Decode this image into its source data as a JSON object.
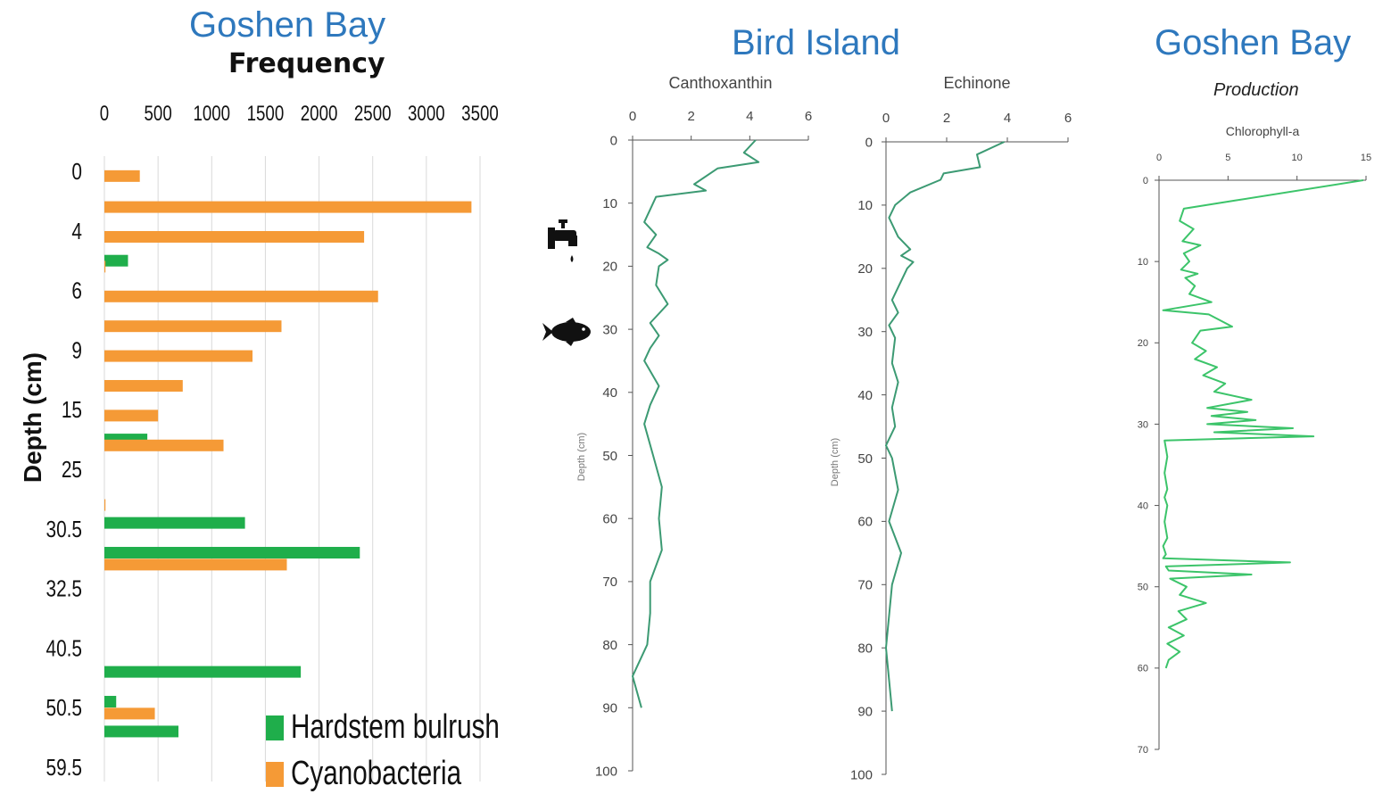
{
  "colors": {
    "title": "#2e78bd",
    "cyanobacteria": "#f59a36",
    "bulrush": "#1fae4b",
    "line_dark": "#3c9a73",
    "line_bright": "#3cc46a",
    "axis": "#555555",
    "grid": "#d9d9d9"
  },
  "panel_left": {
    "title": "Goshen Bay",
    "subtitle": "Frequency",
    "ylabel": "Depth (cm)"
  },
  "panel_middle": {
    "title": "Bird Island",
    "icons": [
      "faucet-icon",
      "fish-icon"
    ]
  },
  "panel_right": {
    "title": "Goshen Bay",
    "subtitle": "Production"
  },
  "chart_data": [
    {
      "type": "bar",
      "orientation": "horizontal",
      "title": "Frequency",
      "ylabel": "Depth (cm)",
      "xlim": [
        0,
        3500
      ],
      "xticks": [
        0,
        500,
        1000,
        1500,
        2000,
        2500,
        3000,
        3500
      ],
      "yticklabels": [
        "0",
        "4",
        "6",
        "9",
        "15",
        "25",
        "30.5",
        "32.5",
        "40.5",
        "50.5",
        "59.5"
      ],
      "legend_position": "bottom-right",
      "grid": true,
      "series": [
        {
          "name": "Hardstem bulrush",
          "bars": [
            {
              "row": 1.5,
              "value": 220
            },
            {
              "row": 4.5,
              "value": 400
            },
            {
              "row": 5.9,
              "value": 1310
            },
            {
              "row": 6.4,
              "value": 2380
            },
            {
              "row": 8.4,
              "value": 1830
            },
            {
              "row": 8.9,
              "value": 110
            },
            {
              "row": 9.4,
              "value": 690
            }
          ]
        },
        {
          "name": "Cyanobacteria",
          "bars": [
            {
              "row": 0.08,
              "value": 330
            },
            {
              "row": 0.6,
              "value": 3420
            },
            {
              "row": 1.1,
              "value": 2420
            },
            {
              "row": 1.6,
              "value": 10
            },
            {
              "row": 2.1,
              "value": 2550
            },
            {
              "row": 2.6,
              "value": 1650
            },
            {
              "row": 3.1,
              "value": 1380
            },
            {
              "row": 3.6,
              "value": 730
            },
            {
              "row": 4.1,
              "value": 500
            },
            {
              "row": 4.6,
              "value": 1110
            },
            {
              "row": 5.6,
              "value": 10
            },
            {
              "row": 6.6,
              "value": 1700
            },
            {
              "row": 9.1,
              "value": 470
            }
          ]
        }
      ]
    },
    {
      "type": "line",
      "title": "Canthoxanthin",
      "ylabel": "Depth (cm)",
      "xlim": [
        0,
        6
      ],
      "ylim": [
        0,
        100
      ],
      "xticks": [
        0,
        2,
        4,
        6
      ],
      "yticks": [
        0,
        10,
        20,
        30,
        40,
        50,
        60,
        70,
        80,
        90,
        100
      ],
      "x": [
        4.2,
        3.8,
        4.3,
        2.9,
        2.1,
        2.5,
        0.8,
        0.6,
        0.4,
        0.8,
        0.5,
        0.9,
        1.2,
        0.9,
        0.8,
        1.2,
        0.8,
        0.6,
        0.9,
        0.6,
        0.4,
        0.9,
        0.6,
        0.4,
        0.7,
        1.0,
        0.9,
        1.0,
        0.6,
        0.6,
        0.5,
        0.0,
        0.3
      ],
      "y": [
        0,
        2,
        3.5,
        4.5,
        7,
        8,
        9,
        11,
        13,
        15,
        17,
        18,
        19,
        20,
        23,
        26,
        28,
        29,
        31,
        33,
        35,
        39,
        42,
        45,
        50,
        55,
        60,
        65,
        70,
        75,
        80,
        85,
        90
      ]
    },
    {
      "type": "line",
      "title": "Echinone",
      "ylabel": "Depth (cm)",
      "xlim": [
        0,
        6
      ],
      "ylim": [
        0,
        100
      ],
      "xticks": [
        0,
        2,
        4,
        6
      ],
      "yticks": [
        0,
        10,
        20,
        30,
        40,
        50,
        60,
        70,
        80,
        90,
        100
      ],
      "x": [
        3.9,
        3.0,
        3.1,
        1.9,
        1.8,
        0.8,
        0.3,
        0.1,
        0.4,
        0.8,
        0.5,
        0.9,
        0.7,
        0.4,
        0.2,
        0.4,
        0.1,
        0.3,
        0.2,
        0.4,
        0.2,
        0.3,
        0.0,
        0.2,
        0.4,
        0.1,
        0.5,
        0.2,
        0.0,
        0.1,
        0.2
      ],
      "y": [
        0,
        2,
        4,
        5,
        6,
        8,
        10,
        12,
        15,
        17,
        18,
        19,
        20,
        23,
        25,
        27,
        29,
        31,
        35,
        38,
        42,
        45,
        48,
        50,
        55,
        60,
        65,
        70,
        80,
        85,
        90
      ]
    },
    {
      "type": "line",
      "title": "Chlorophyll-a",
      "subtitle": "Production",
      "xlim": [
        0,
        15
      ],
      "ylim": [
        0,
        70
      ],
      "xticks": [
        0,
        5,
        10,
        15
      ],
      "yticks": [
        0,
        10,
        20,
        30,
        40,
        50,
        60,
        70
      ],
      "x": [
        14.8,
        5.5,
        1.8,
        1.5,
        2.5,
        1.7,
        3.0,
        1.8,
        2.2,
        1.6,
        2.8,
        1.9,
        2.6,
        2.2,
        3.8,
        0.3,
        3.6,
        5.3,
        3.0,
        2.4,
        3.4,
        2.6,
        4.2,
        3.2,
        4.8,
        4.0,
        6.7,
        3.5,
        6.4,
        3.8,
        7.0,
        3.5,
        9.7,
        4.0,
        11.2,
        0.4,
        0.6,
        0.4,
        0.6,
        0.4,
        0.6,
        0.4,
        0.6,
        0.3,
        0.5,
        0.3,
        9.5,
        0.5,
        0.7,
        6.7,
        0.8,
        2.0,
        1.5,
        3.4,
        1.4,
        2.0,
        0.7,
        1.8,
        0.6,
        1.5,
        0.7,
        0.5
      ],
      "y": [
        0,
        2.5,
        3.5,
        5,
        6,
        7.5,
        8,
        9,
        10,
        11,
        11.5,
        12,
        13,
        14,
        15,
        16,
        16.5,
        18,
        18.5,
        20,
        21,
        22,
        23,
        24,
        25,
        26,
        27,
        28,
        28.5,
        29,
        29.5,
        30,
        30.5,
        31,
        31.5,
        32,
        34,
        36,
        38,
        39,
        40,
        42,
        44,
        45,
        46,
        46.5,
        47,
        47.5,
        48,
        48.5,
        49,
        50,
        51,
        52,
        53,
        54,
        55,
        56,
        57,
        58,
        59,
        60
      ]
    }
  ]
}
